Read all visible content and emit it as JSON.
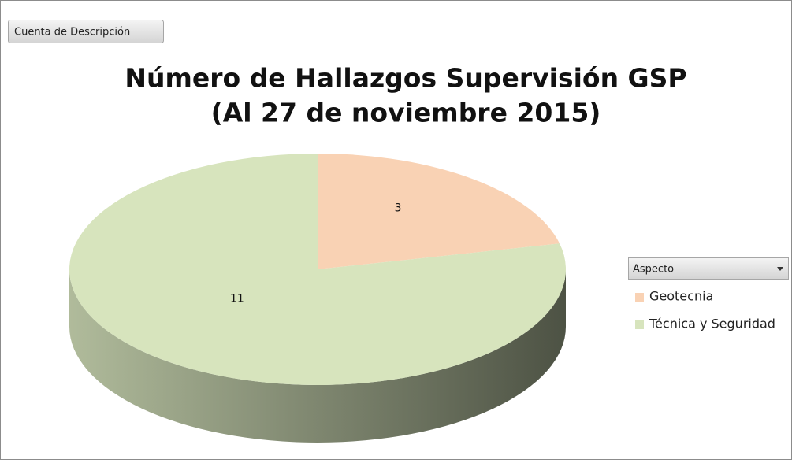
{
  "chart_data": {
    "type": "pie3d",
    "field_button": "Cuenta de Descripción",
    "title": "Número de Hallazgos Supervisión GSP",
    "subtitle": "(Al 27 de noviembre 2015)",
    "legend_title": "Aspecto",
    "legend": "right",
    "categories": [
      "Geotecnia",
      "Técnica y Seguridad"
    ],
    "values": [
      3,
      11
    ],
    "colors": [
      "#f9d2b4",
      "#d7e4bd"
    ]
  }
}
